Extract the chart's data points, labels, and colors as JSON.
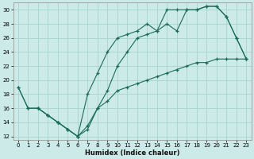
{
  "xlabel": "Humidex (Indice chaleur)",
  "bg_color": "#cceae7",
  "line_color": "#1a6b5a",
  "grid_color": "#aad4ce",
  "xlim": [
    -0.5,
    23.5
  ],
  "ylim": [
    11.5,
    31
  ],
  "xticks": [
    0,
    1,
    2,
    3,
    4,
    5,
    6,
    7,
    8,
    9,
    10,
    11,
    12,
    13,
    14,
    15,
    16,
    17,
    18,
    19,
    20,
    21,
    22,
    23
  ],
  "yticks": [
    12,
    14,
    16,
    18,
    20,
    22,
    24,
    26,
    28,
    30
  ],
  "line1_x": [
    0,
    1,
    2,
    3,
    4,
    5,
    6,
    7,
    8,
    9,
    10,
    11,
    12,
    13,
    14,
    15,
    16,
    17,
    18,
    19,
    20,
    21,
    22,
    23
  ],
  "line1_y": [
    19,
    16,
    16,
    15,
    14,
    13,
    12,
    13,
    16,
    17,
    18.5,
    19,
    19.5,
    20,
    20.5,
    21,
    21.5,
    22,
    22.5,
    22.5,
    23,
    23,
    23,
    23
  ],
  "line2_x": [
    0,
    1,
    2,
    3,
    4,
    5,
    6,
    7,
    8,
    9,
    10,
    11,
    12,
    13,
    14,
    15,
    16,
    17,
    18,
    19,
    20,
    21,
    22,
    23
  ],
  "line2_y": [
    19,
    16,
    16,
    15,
    14,
    13,
    12,
    18,
    21,
    24,
    26,
    26.5,
    27,
    28,
    27,
    30,
    30,
    30,
    30,
    30.5,
    30.5,
    29,
    26,
    23
  ],
  "line3_x": [
    2,
    3,
    4,
    5,
    6,
    7,
    8,
    9,
    10,
    11,
    12,
    13,
    14,
    15,
    16,
    17,
    18,
    19,
    20,
    21,
    22,
    23
  ],
  "line3_y": [
    16,
    15,
    14,
    13,
    12,
    13.5,
    16,
    18.5,
    22,
    24,
    26,
    26.5,
    27,
    28,
    27,
    30,
    30,
    30.5,
    30.5,
    29,
    26,
    23
  ]
}
